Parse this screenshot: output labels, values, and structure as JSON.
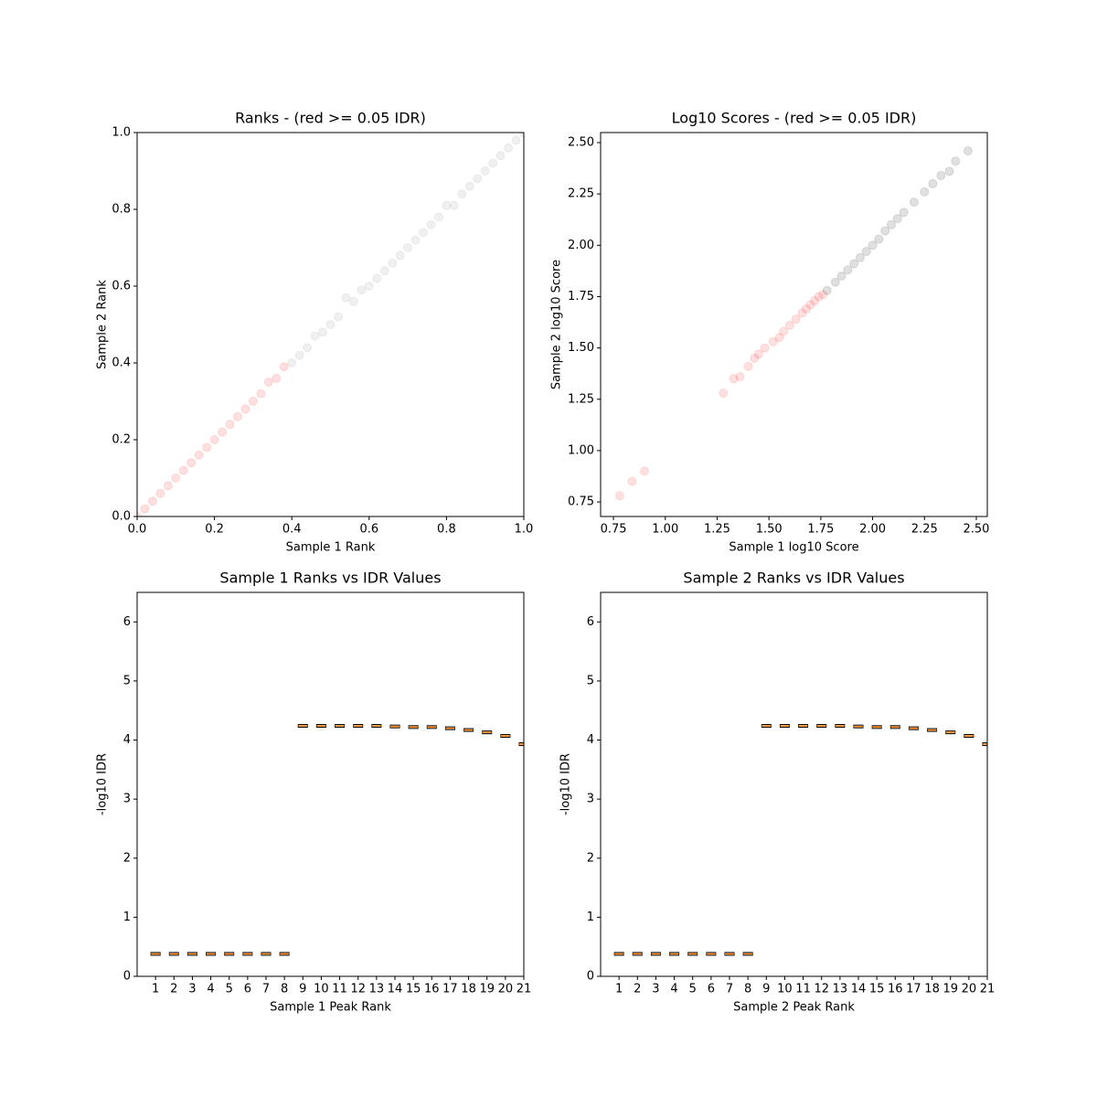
{
  "chart_data": [
    {
      "type": "scatter",
      "title": "Ranks - (red >= 0.05 IDR)",
      "xlabel": "Sample 1 Rank",
      "ylabel": "Sample 2 Rank",
      "xlim": [
        0,
        1
      ],
      "ylim": [
        0,
        1
      ],
      "opacity": 0.12,
      "xticks": [
        {
          "value": 0,
          "label": "0.0"
        },
        0.2,
        0.4,
        0.6,
        0.8,
        {
          "value": 1,
          "label": "1.0"
        }
      ],
      "yticks": [
        {
          "value": 0,
          "label": "0.0"
        },
        0.2,
        0.4,
        0.6,
        0.8,
        {
          "value": 1,
          "label": "1.0"
        }
      ],
      "series": [
        {
          "color": "#ff0000",
          "x": [
            0.0,
            0.02,
            0.04,
            0.06,
            0.08,
            0.1,
            0.12,
            0.14,
            0.16,
            0.18,
            0.2,
            0.22,
            0.24,
            0.26,
            0.28,
            0.3,
            0.32,
            0.34,
            0.36,
            0.38
          ],
          "values": [
            0.0,
            0.02,
            0.04,
            0.06,
            0.08,
            0.1,
            0.12,
            0.14,
            0.16,
            0.18,
            0.2,
            0.22,
            0.24,
            0.26,
            0.28,
            0.3,
            0.32,
            0.35,
            0.36,
            0.39
          ]
        },
        {
          "color": "#808080",
          "x": [
            0.4,
            0.42,
            0.44,
            0.46,
            0.48,
            0.5,
            0.52,
            0.54,
            0.56,
            0.58,
            0.6,
            0.62,
            0.64,
            0.66,
            0.68,
            0.7,
            0.72,
            0.74,
            0.76,
            0.78,
            0.8,
            0.82,
            0.84,
            0.86,
            0.88,
            0.9,
            0.92,
            0.94,
            0.96,
            0.98,
            1.0
          ],
          "values": [
            0.4,
            0.42,
            0.44,
            0.47,
            0.48,
            0.5,
            0.52,
            0.57,
            0.56,
            0.59,
            0.6,
            0.62,
            0.64,
            0.66,
            0.68,
            0.7,
            0.72,
            0.74,
            0.76,
            0.78,
            0.81,
            0.81,
            0.84,
            0.86,
            0.88,
            0.9,
            0.92,
            0.94,
            0.96,
            0.98,
            1.0
          ]
        }
      ]
    },
    {
      "type": "scatter",
      "title": "Log10 Scores - (red >= 0.05 IDR)",
      "xlabel": "Sample 1 log10 Score",
      "ylabel": "Sample 2 log10 Score",
      "xlim": [
        0.688,
        2.553
      ],
      "ylim": [
        0.679,
        2.549
      ],
      "opacity": 0.12,
      "xticks": [
        0.75,
        {
          "value": 1,
          "label": "1.00"
        },
        1.25,
        {
          "value": 1.5,
          "label": "1.50"
        },
        1.75,
        {
          "value": 2,
          "label": "2.00"
        },
        2.25,
        {
          "value": 2.5,
          "label": "2.50"
        }
      ],
      "yticks": [
        0.75,
        {
          "value": 1,
          "label": "1.00"
        },
        1.25,
        {
          "value": 1.5,
          "label": "1.50"
        },
        1.75,
        {
          "value": 2,
          "label": "2.00"
        },
        2.25,
        {
          "value": 2.5,
          "label": "2.50"
        }
      ],
      "series": [
        {
          "color": "#ff0000",
          "x": [
            0.78,
            0.84,
            0.9,
            1.28,
            1.33,
            1.36,
            1.4,
            1.43,
            1.45,
            1.48,
            1.52,
            1.55,
            1.57,
            1.6,
            1.63,
            1.66,
            1.68,
            1.7,
            1.72,
            1.74,
            1.76
          ],
          "values": [
            0.78,
            0.85,
            0.9,
            1.28,
            1.35,
            1.36,
            1.41,
            1.45,
            1.47,
            1.5,
            1.53,
            1.55,
            1.58,
            1.61,
            1.64,
            1.67,
            1.69,
            1.71,
            1.73,
            1.75,
            1.76
          ]
        },
        {
          "color": "#000000",
          "x": [
            1.78,
            1.82,
            1.85,
            1.88,
            1.91,
            1.94,
            1.97,
            2.0,
            2.03,
            2.06,
            2.09,
            2.12,
            2.15,
            2.2,
            2.25,
            2.29,
            2.33,
            2.37,
            2.4,
            2.46
          ],
          "values": [
            1.78,
            1.82,
            1.85,
            1.88,
            1.91,
            1.94,
            1.97,
            2.0,
            2.03,
            2.07,
            2.1,
            2.13,
            2.16,
            2.21,
            2.26,
            2.3,
            2.34,
            2.36,
            2.41,
            2.46
          ]
        }
      ]
    },
    {
      "type": "box",
      "title": "Sample 1 Ranks vs IDR Values",
      "xlabel": "Sample 1 Peak Rank",
      "ylabel": "-log10 IDR",
      "ylim": [
        0,
        6.5
      ],
      "yticks": [
        0,
        1,
        2,
        3,
        4,
        5,
        6
      ],
      "color": "#ff7f0e",
      "categories": [
        "1",
        "2",
        "3",
        "4",
        "5",
        "6",
        "7",
        "8",
        "9",
        "10",
        "11",
        "12",
        "13",
        "14",
        "15",
        "16",
        "17",
        "18",
        "19",
        "20",
        "21"
      ],
      "values": [
        0.38,
        0.38,
        0.38,
        0.38,
        0.38,
        0.38,
        0.38,
        0.38,
        4.24,
        4.24,
        4.24,
        4.24,
        4.24,
        4.23,
        4.22,
        4.22,
        4.2,
        4.17,
        4.13,
        4.07,
        3.93
      ]
    },
    {
      "type": "box",
      "title": "Sample 2 Ranks vs IDR Values",
      "xlabel": "Sample 2 Peak Rank",
      "ylabel": "-log10 IDR",
      "ylim": [
        0,
        6.5
      ],
      "yticks": [
        0,
        1,
        2,
        3,
        4,
        5,
        6
      ],
      "color": "#ff7f0e",
      "categories": [
        "1",
        "2",
        "3",
        "4",
        "5",
        "6",
        "7",
        "8",
        "9",
        "10",
        "11",
        "12",
        "13",
        "14",
        "15",
        "16",
        "17",
        "18",
        "19",
        "20",
        "21"
      ],
      "values": [
        0.38,
        0.38,
        0.38,
        0.38,
        0.38,
        0.38,
        0.38,
        0.38,
        4.24,
        4.24,
        4.24,
        4.24,
        4.24,
        4.23,
        4.22,
        4.22,
        4.2,
        4.17,
        4.13,
        4.07,
        3.93
      ]
    }
  ]
}
